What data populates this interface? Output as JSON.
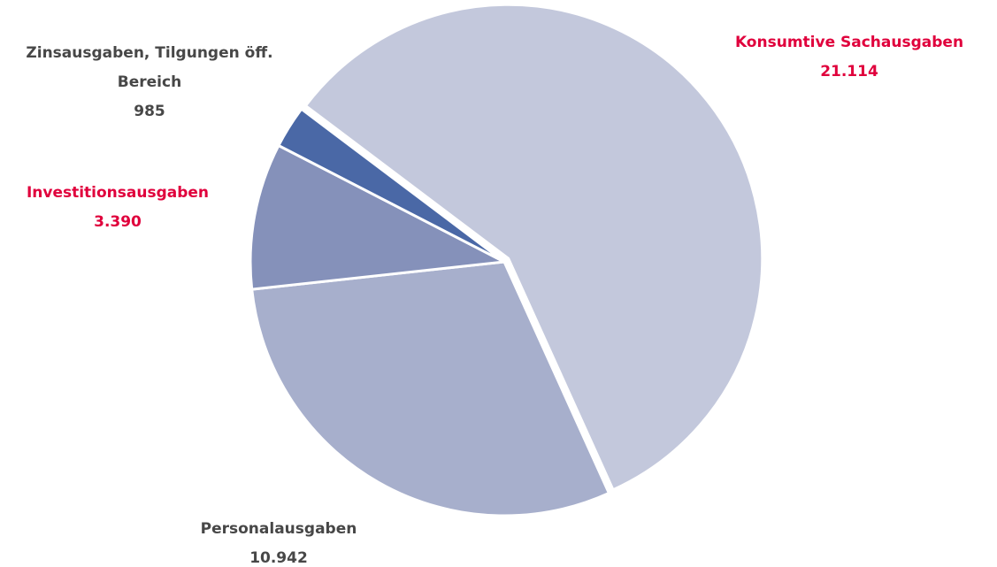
{
  "chart_data": {
    "type": "pie",
    "categories": [
      "Konsumtive Sachausgaben",
      "Personalausgaben",
      "Investitionsausgaben",
      "Zinsausgaben, Tilgungen öff. Bereich"
    ],
    "values": [
      21114,
      10942,
      3390,
      985
    ],
    "value_labels": [
      "21.114",
      "10.942",
      "3.390",
      "985"
    ],
    "colors": [
      "#c3c8dc",
      "#a7afcc",
      "#8591ba",
      "#4a68a6"
    ]
  }
}
